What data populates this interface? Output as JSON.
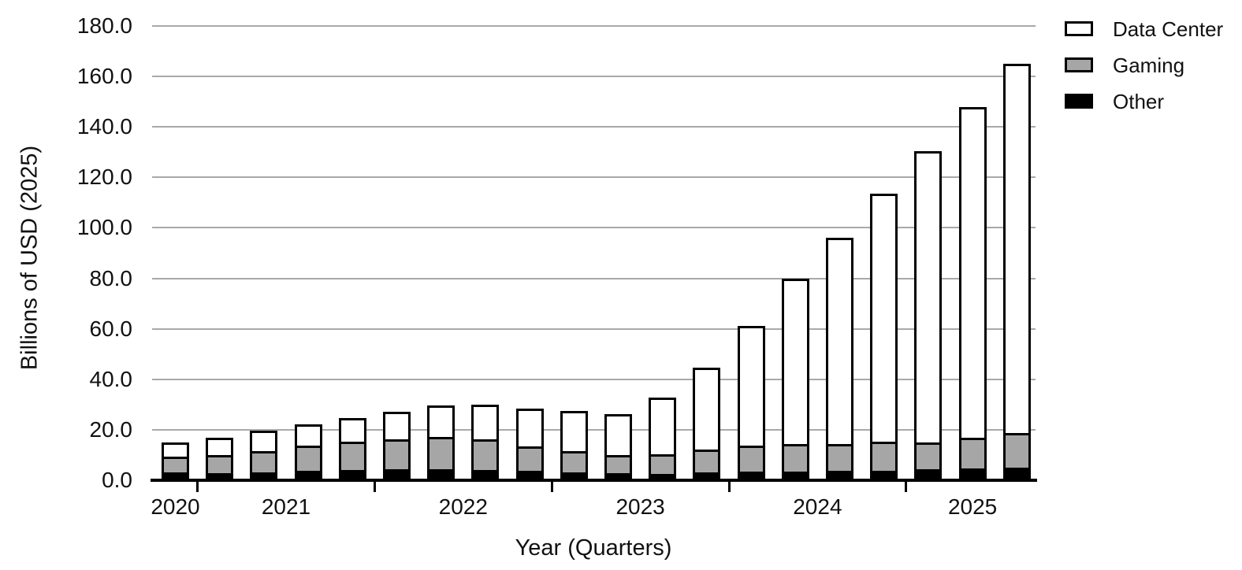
{
  "ui": {
    "legend": {
      "items": [
        {
          "label": "Data Center",
          "color": "#ffffff"
        },
        {
          "label": "Gaming",
          "color": "#a6a6a6"
        },
        {
          "label": "Other",
          "color": "#000000"
        }
      ]
    },
    "colors": {
      "gridline": "#a9a9a9",
      "bar_border": "#000000",
      "axis": "#000000"
    }
  },
  "chart_data": {
    "type": "bar",
    "stacked": true,
    "title": "",
    "xlabel": "Year (Quarters)",
    "ylabel": "Billions of USD (2025)",
    "ylim": [
      0,
      180
    ],
    "ytick_step": 20,
    "ytick_decimals": 1,
    "grid": "horizontal",
    "legend_position": "top-right",
    "x_year_groups": [
      {
        "year": "2020",
        "quarters": 1
      },
      {
        "year": "2021",
        "quarters": 4
      },
      {
        "year": "2022",
        "quarters": 4
      },
      {
        "year": "2023",
        "quarters": 4
      },
      {
        "year": "2024",
        "quarters": 4
      },
      {
        "year": "2025",
        "quarters": 3
      }
    ],
    "categories": [
      "2020 Q4",
      "2021 Q1",
      "2021 Q2",
      "2021 Q3",
      "2021 Q4",
      "2022 Q1",
      "2022 Q2",
      "2022 Q3",
      "2022 Q4",
      "2023 Q1",
      "2023 Q2",
      "2023 Q3",
      "2023 Q4",
      "2024 Q1",
      "2024 Q2",
      "2024 Q3",
      "2024 Q4",
      "2025 Q1",
      "2025 Q2",
      "2025 Q3"
    ],
    "series": [
      {
        "name": "Other",
        "color": "#000000",
        "values": [
          3.0,
          2.9,
          3.1,
          3.6,
          4.0,
          4.4,
          4.4,
          4.1,
          3.8,
          3.1,
          2.8,
          2.6,
          3.1,
          3.3,
          3.3,
          3.6,
          3.8,
          4.4,
          4.7,
          5.0
        ]
      },
      {
        "name": "Gaming",
        "color": "#a6a6a6",
        "values": [
          6.4,
          7.2,
          8.4,
          10.0,
          11.4,
          11.8,
          12.7,
          12.0,
          9.7,
          8.5,
          7.3,
          7.8,
          9.2,
          10.4,
          11.0,
          10.9,
          11.6,
          10.6,
          12.1,
          13.7
        ]
      },
      {
        "name": "Data Center",
        "color": "#ffffff",
        "values": [
          5.6,
          6.9,
          8.0,
          8.5,
          9.1,
          11.0,
          12.4,
          14.0,
          15.0,
          15.8,
          16.0,
          22.3,
          32.3,
          47.3,
          65.7,
          81.5,
          98.1,
          115.5,
          131.2,
          146.3
        ]
      }
    ],
    "totals": [
      15.0,
      17.0,
      19.5,
      22.1,
      24.5,
      27.2,
      29.5,
      30.1,
      28.5,
      27.4,
      26.1,
      32.7,
      44.6,
      61.0,
      80.0,
      96.0,
      113.5,
      130.5,
      148.0,
      165.0
    ]
  }
}
